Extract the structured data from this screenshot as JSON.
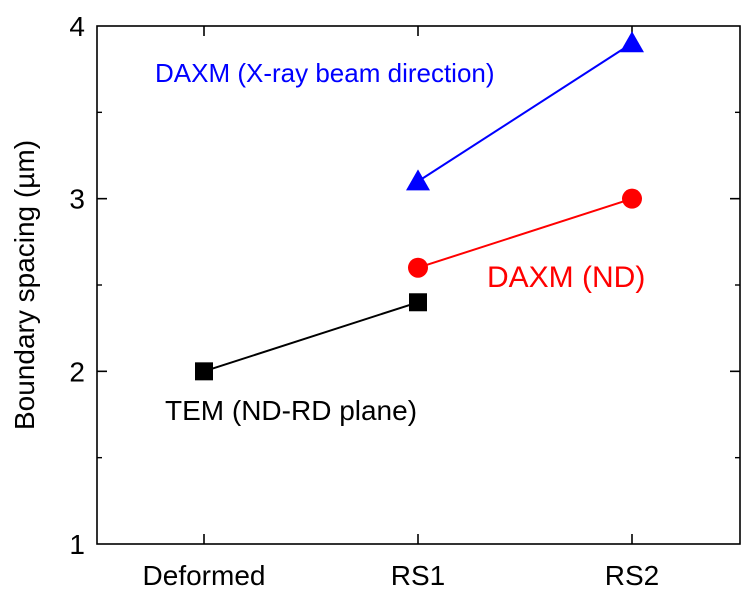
{
  "chart_data": {
    "type": "line",
    "title": "",
    "xlabel": "",
    "ylabel": "Boundary spacing (µm)",
    "categories": [
      "Deformed",
      "RS1",
      "RS2"
    ],
    "ylim": [
      1,
      4
    ],
    "yticks": [
      "1",
      "2",
      "3",
      "4"
    ],
    "grid": false,
    "legend": "none",
    "series": [
      {
        "name": "TEM (ND-RD plane)",
        "marker": "square",
        "color": "#000000",
        "x": [
          "Deformed",
          "RS1"
        ],
        "values": [
          2.0,
          2.4
        ]
      },
      {
        "name": "DAXM (ND)",
        "marker": "circle",
        "color": "#ff0000",
        "x": [
          "RS1",
          "RS2"
        ],
        "values": [
          2.6,
          3.0
        ]
      },
      {
        "name": "DAXM (X-ray beam direction)",
        "marker": "triangle",
        "color": "#0000ff",
        "x": [
          "RS1",
          "RS2"
        ],
        "values": [
          3.1,
          3.9
        ]
      }
    ]
  }
}
